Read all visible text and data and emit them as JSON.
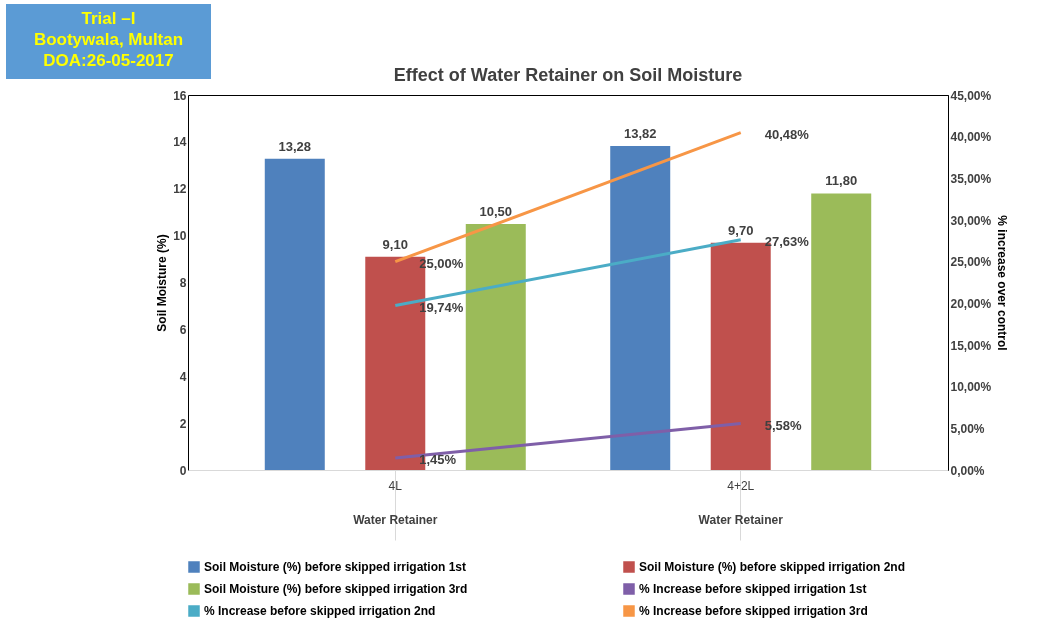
{
  "chart_data": {
    "type": "bar",
    "title": "Effect of Water Retainer on Soil Moisture",
    "ylabel": "Soil Moisture (%)",
    "y2label": "% increase over control",
    "categories": [
      "4L",
      "4+2L"
    ],
    "series": [
      {
        "name": "Soil Moisture (%) before skipped irrigation  1st",
        "color": "#4f81bd",
        "values": [
          13.28,
          13.82
        ],
        "value_labels": [
          "13,28",
          "13,82"
        ]
      },
      {
        "name": "Soil Moisture (%) before skipped irrigation  2nd",
        "color": "#c0504d",
        "values": [
          9.1,
          9.7
        ],
        "value_labels": [
          "9,10",
          "9,70"
        ]
      },
      {
        "name": "Soil Moisture (%) before skipped irrigation  3rd",
        "color": "#9bbb59",
        "values": [
          10.5,
          11.8
        ],
        "value_labels": [
          "10,50",
          "11,80"
        ]
      },
      {
        "name": "% Increase before skipped irrigation 1st",
        "type": "line",
        "axis": "y2",
        "color": "#7f5fa8",
        "values": [
          1.45,
          5.58
        ],
        "value_labels": [
          "1,45%",
          "5,58%"
        ]
      },
      {
        "name": "% Increase before skipped irrigation 2nd",
        "type": "line",
        "axis": "y2",
        "color": "#4bacc6",
        "values": [
          19.74,
          27.63
        ],
        "value_labels": [
          "19,74%",
          "27,63%"
        ]
      },
      {
        "name": "% Increase before skipped irrigation 3rd",
        "type": "line",
        "axis": "y2",
        "color": "#f79646",
        "values": [
          25.0,
          40.48
        ],
        "value_labels": [
          "25,00%",
          "40,48%"
        ]
      }
    ],
    "ylim": [
      0,
      16
    ],
    "yticks": [
      0,
      2,
      4,
      6,
      8,
      10,
      12,
      14,
      16
    ],
    "y2lim": [
      0,
      45
    ],
    "y2ticks": [
      {
        "value": 0,
        "label": "0,00%"
      },
      {
        "value": 5,
        "label": "5,00%"
      },
      {
        "value": 10,
        "label": "10,00%"
      },
      {
        "value": 15,
        "label": "15,00%"
      },
      {
        "value": 20,
        "label": "20,00%"
      },
      {
        "value": 25,
        "label": "25,00%"
      },
      {
        "value": 30,
        "label": "30,00%"
      },
      {
        "value": 35,
        "label": "35,00%"
      },
      {
        "value": 40,
        "label": "40,00%"
      },
      {
        "value": 45,
        "label": "45,00%"
      }
    ],
    "grid": false,
    "legend": "bottom",
    "marker": "none",
    "line_style": "solid",
    "annotations": [
      "Trial –I",
      "Bootywala, Multan",
      "DOA:26-05-2017",
      {
        "text": "Water Retainer",
        "x": "4L"
      },
      {
        "text": "Water Retainer",
        "x": "4+2L"
      }
    ]
  }
}
